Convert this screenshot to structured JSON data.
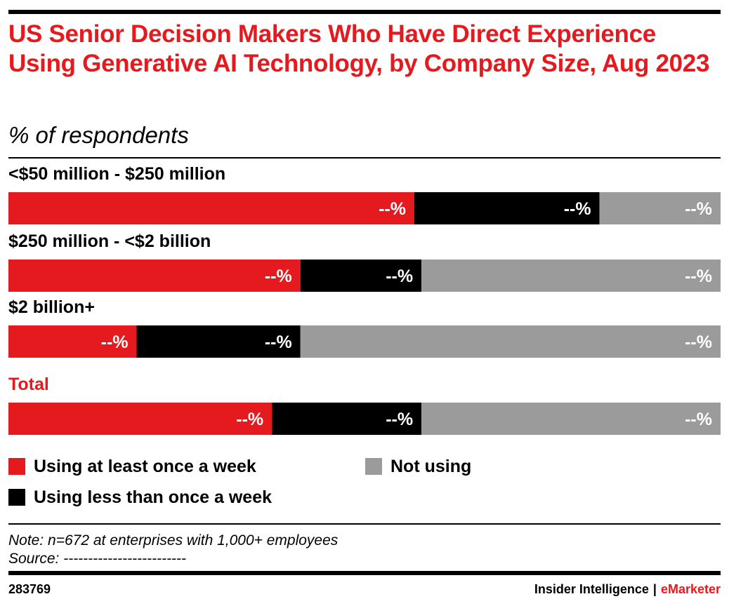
{
  "header": {
    "title": "US Senior Decision Makers Who Have Direct Experience Using Generative AI Technology, by Company Size, Aug 2023",
    "subtitle": "% of respondents"
  },
  "colors": {
    "weekly": "#e51a1f",
    "less_weekly": "#000000",
    "not_using": "#9b9b9b",
    "total_label": "#e51a1f"
  },
  "chart_data": {
    "type": "bar",
    "orientation": "horizontal",
    "stacked": true,
    "normalized": true,
    "categories": [
      "<$50 million - $250 million",
      "$250 million - <$2 billion",
      "$2 billion+",
      "Total"
    ],
    "series": [
      {
        "name": "Using at least once a week",
        "values": [
          57,
          41,
          18,
          37
        ],
        "labels": [
          "--%",
          "--%",
          "--%",
          "--%"
        ]
      },
      {
        "name": "Using less than once a week",
        "values": [
          26,
          17,
          23,
          21
        ],
        "labels": [
          "--%",
          "--%",
          "--%",
          "--%"
        ]
      },
      {
        "name": "Not using",
        "values": [
          17,
          42,
          59,
          42
        ],
        "labels": [
          "--%",
          "--%",
          "--%",
          "--%"
        ]
      }
    ],
    "xlim": [
      0,
      100
    ],
    "grid": false,
    "legend": "bottom"
  },
  "legend": {
    "weekly": "Using at least once a week",
    "less_weekly": "Using less than once a week",
    "not_using": "Not using"
  },
  "footer": {
    "note": "Note: n=672 at enterprises with 1,000+ employees",
    "source": "Source: -------------------------",
    "chart_id": "283769",
    "brand_left": "Insider Intelligence",
    "brand_sep": "|",
    "brand_right": "eMarketer"
  }
}
